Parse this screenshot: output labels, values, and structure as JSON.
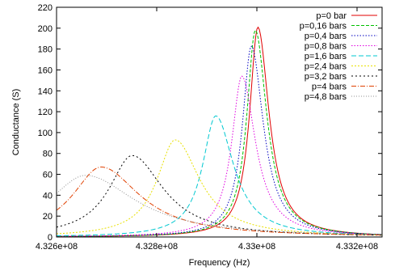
{
  "chart_data": {
    "type": "line",
    "title": "",
    "xlabel": "Frequency (Hz)",
    "ylabel": "Conductance (S)",
    "xlim": [
      432600000,
      433250000
    ],
    "ylim": [
      0,
      220
    ],
    "grid": false,
    "legend_position": "top-right",
    "x_ticks": [
      {
        "value": 432600000,
        "label": "4.326e+08"
      },
      {
        "value": 432800000,
        "label": "4.328e+08"
      },
      {
        "value": 433000000,
        "label": "4.33e+08"
      },
      {
        "value": 433200000,
        "label": "4.332e+08"
      }
    ],
    "y_ticks": [
      0,
      20,
      40,
      60,
      80,
      100,
      120,
      140,
      160,
      180,
      200,
      220
    ],
    "series": [
      {
        "name": "p=0 bar",
        "color": "#e00000",
        "dash": "",
        "peak_x": 433002000,
        "peak_y": 201,
        "half_width": 20000,
        "base": 0
      },
      {
        "name": "p=0,16 bars",
        "color": "#00c000",
        "dash": "4,2",
        "peak_x": 432997000,
        "peak_y": 198,
        "half_width": 20500,
        "base": 0
      },
      {
        "name": "p=0,4 bars",
        "color": "#0000c0",
        "dash": "1.5,2",
        "peak_x": 432989000,
        "peak_y": 183,
        "half_width": 21500,
        "base": 0
      },
      {
        "name": "p=0,8 bars",
        "color": "#e000e0",
        "dash": "1.5,2",
        "peak_x": 432970000,
        "peak_y": 154,
        "half_width": 24500,
        "base": 0
      },
      {
        "name": "p=1,6 bars",
        "color": "#00c8d0",
        "dash": "6,3",
        "peak_x": 432918000,
        "peak_y": 116,
        "half_width": 32000,
        "base": 0
      },
      {
        "name": "p=2,4 bars",
        "color": "#e8e000",
        "dash": "2,2",
        "peak_x": 432837000,
        "peak_y": 93,
        "half_width": 44000,
        "base": 0
      },
      {
        "name": "p=3,2 bars",
        "color": "#000000",
        "dash": "2,3",
        "peak_x": 432751000,
        "peak_y": 78,
        "half_width": 56000,
        "base": 0
      },
      {
        "name": "p=4 bars",
        "color": "#e04000",
        "dash": "6,2,1,2",
        "peak_x": 432689000,
        "peak_y": 67,
        "half_width": 70000,
        "base": 0
      },
      {
        "name": "p=4,8 bars",
        "color": "#909090",
        "dash": "1,2",
        "peak_x": 432658000,
        "peak_y": 59,
        "half_width": 90000,
        "base": 0
      }
    ]
  }
}
